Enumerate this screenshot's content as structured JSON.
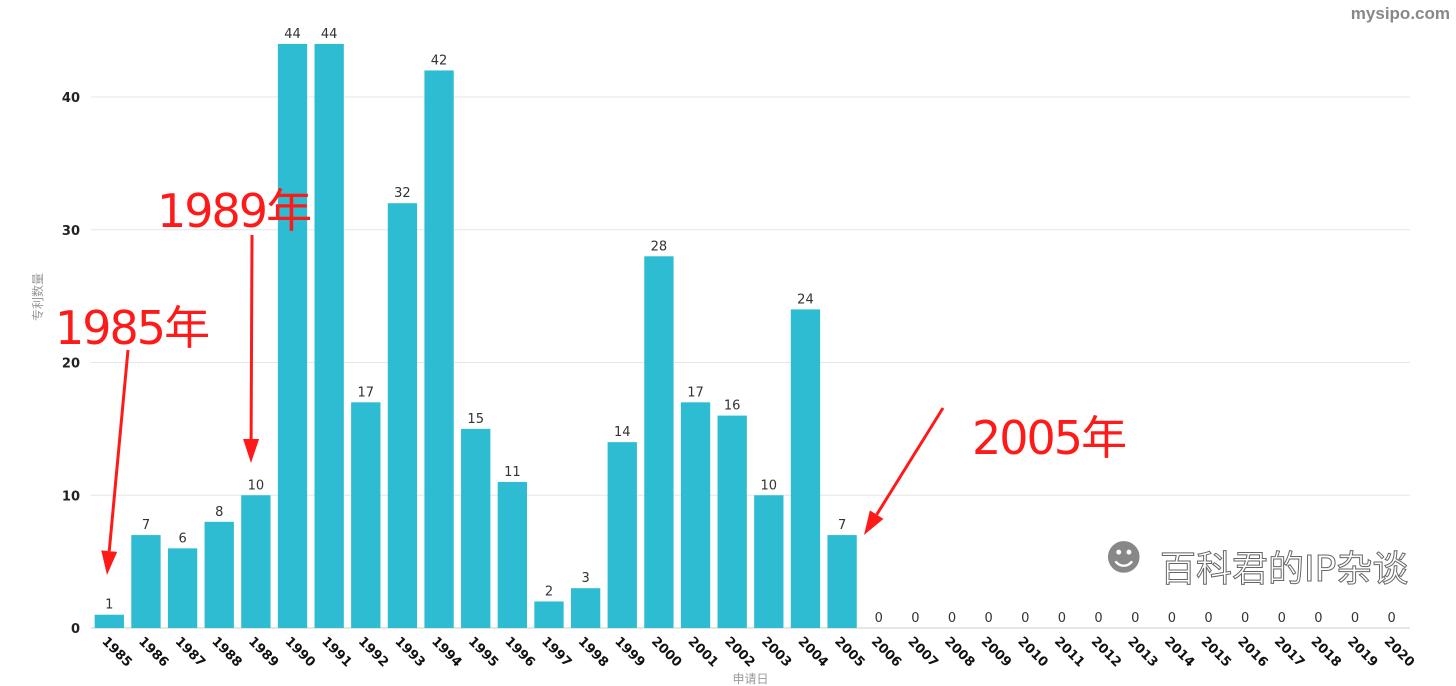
{
  "chart_data": {
    "type": "bar",
    "xlabel": "申请日",
    "ylabel": "专利数量",
    "ylim": [
      0,
      44
    ],
    "yticks": [
      0,
      10,
      20,
      30,
      40
    ],
    "grid": true,
    "bar_color": "#2dbcd2",
    "categories": [
      "1985",
      "1986",
      "1987",
      "1988",
      "1989",
      "1990",
      "1991",
      "1992",
      "1993",
      "1994",
      "1995",
      "1996",
      "1997",
      "1998",
      "1999",
      "2000",
      "2001",
      "2002",
      "2003",
      "2004",
      "2005",
      "2006",
      "2007",
      "2008",
      "2009",
      "2010",
      "2011",
      "2012",
      "2013",
      "2014",
      "2015",
      "2016",
      "2017",
      "2018",
      "2019",
      "2020"
    ],
    "values": [
      1,
      7,
      6,
      8,
      10,
      44,
      44,
      17,
      32,
      42,
      15,
      11,
      2,
      3,
      14,
      28,
      17,
      16,
      10,
      24,
      7,
      0,
      0,
      0,
      0,
      0,
      0,
      0,
      0,
      0,
      0,
      0,
      0,
      0,
      0,
      0
    ],
    "annotations": [
      {
        "text": "1985年",
        "points_to": "1985"
      },
      {
        "text": "1989年",
        "points_to": "1989"
      },
      {
        "text": "2005年",
        "points_to": "2005"
      }
    ],
    "annotation_color": "#ff1a1a"
  },
  "watermark": {
    "text": "百科君的IP杂谈",
    "site": "mysipo.com"
  }
}
